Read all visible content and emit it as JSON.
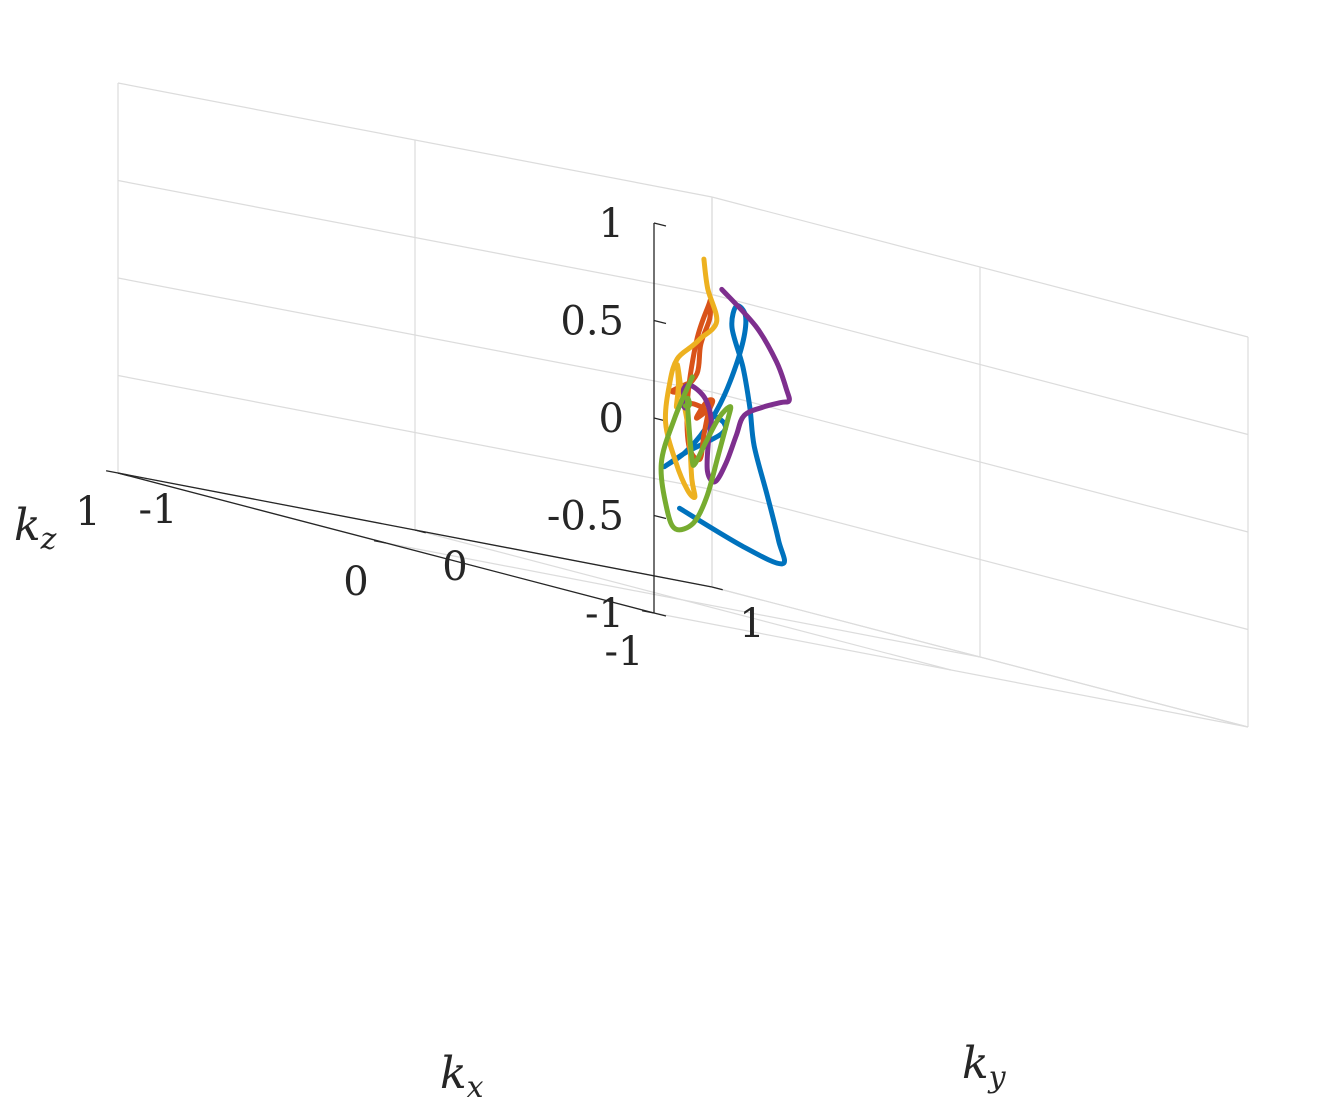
{
  "chart_data": {
    "type": "line3d",
    "title": "",
    "xlabel": "k",
    "xlabel_sub": "x",
    "ylabel": "k",
    "ylabel_sub": "y",
    "zlabel": "k",
    "zlabel_sub": "z",
    "xlim": [
      -1,
      1
    ],
    "ylim": [
      -1,
      1
    ],
    "zlim": [
      -1,
      1
    ],
    "x_ticks": [
      "-1",
      "0",
      "1"
    ],
    "y_ticks": [
      "-1",
      "0",
      "1"
    ],
    "z_ticks": [
      "-1",
      "-0.5",
      "0",
      "0.5",
      "1"
    ],
    "grid": true,
    "legend": "none",
    "series": [
      {
        "color": "#0072BD",
        "points": [
          [
            0.7,
            0.62,
            -0.6
          ],
          [
            0.55,
            0.7,
            -0.72
          ],
          [
            0.35,
            0.65,
            -0.75
          ],
          [
            0.22,
            0.52,
            -0.62
          ],
          [
            0.15,
            0.42,
            -0.4
          ],
          [
            0.1,
            0.33,
            -0.15
          ],
          [
            0.05,
            0.27,
            0.05
          ],
          [
            0.02,
            0.22,
            0.25
          ],
          [
            -0.05,
            0.12,
            0.45
          ],
          [
            -0.2,
            0.0,
            0.58
          ],
          [
            -0.4,
            -0.15,
            0.55
          ],
          [
            -0.55,
            -0.3,
            0.4
          ],
          [
            -0.62,
            -0.42,
            0.15
          ],
          [
            -0.58,
            -0.45,
            -0.05
          ],
          [
            -0.45,
            -0.4,
            -0.2
          ],
          [
            -0.25,
            -0.28,
            -0.3
          ],
          [
            -0.05,
            -0.1,
            -0.32
          ],
          [
            0.1,
            0.1,
            -0.25
          ],
          [
            0.08,
            0.2,
            -0.12
          ],
          [
            -0.02,
            0.12,
            -0.05
          ],
          [
            -0.08,
            0.02,
            -0.01
          ]
        ]
      },
      {
        "color": "#D95319",
        "points": [
          [
            0.75,
            0.7,
            0.05
          ],
          [
            0.65,
            0.55,
            0.0
          ],
          [
            0.45,
            0.4,
            0.03
          ],
          [
            0.28,
            0.3,
            0.15
          ],
          [
            0.1,
            0.15,
            0.32
          ],
          [
            -0.1,
            0.0,
            0.48
          ],
          [
            -0.3,
            -0.18,
            0.58
          ],
          [
            -0.45,
            -0.32,
            0.58
          ],
          [
            -0.55,
            -0.45,
            0.4
          ],
          [
            -0.55,
            -0.48,
            0.1
          ],
          [
            -0.52,
            -0.45,
            -0.15
          ],
          [
            -0.45,
            -0.35,
            -0.22
          ],
          [
            -0.3,
            -0.2,
            -0.1
          ],
          [
            -0.15,
            -0.05,
            0.0
          ],
          [
            0.0,
            0.1,
            0.05
          ],
          [
            0.1,
            0.17,
            0.03
          ],
          [
            0.08,
            0.12,
            -0.05
          ],
          [
            0.0,
            0.05,
            -0.05
          ],
          [
            -0.05,
            0.03,
            0.0
          ],
          [
            -0.04,
            0.0,
            0.02
          ],
          [
            -0.02,
            -0.01,
            0.01
          ]
        ]
      },
      {
        "color": "#EDB120",
        "points": [
          [
            0.72,
            0.72,
            0.7
          ],
          [
            0.75,
            0.76,
            0.55
          ],
          [
            0.65,
            0.7,
            0.4
          ],
          [
            0.4,
            0.42,
            0.32
          ],
          [
            0.1,
            0.12,
            0.3
          ],
          [
            -0.2,
            -0.2,
            0.25
          ],
          [
            -0.45,
            -0.45,
            0.15
          ],
          [
            -0.6,
            -0.6,
            -0.05
          ],
          [
            -0.55,
            -0.52,
            -0.25
          ],
          [
            -0.35,
            -0.3,
            -0.4
          ],
          [
            -0.1,
            -0.05,
            -0.45
          ],
          [
            0.1,
            0.12,
            -0.38
          ],
          [
            0.2,
            0.2,
            -0.15
          ],
          [
            0.25,
            0.22,
            0.05
          ],
          [
            0.22,
            0.18,
            0.18
          ],
          [
            0.15,
            0.12,
            0.08
          ],
          [
            0.08,
            0.05,
            -0.02
          ],
          [
            0.02,
            0.0,
            0.0
          ],
          [
            -0.01,
            -0.01,
            0.01
          ],
          [
            -0.02,
            -0.01,
            0.0
          ]
        ]
      },
      {
        "color": "#7E2F8E",
        "points": [
          [
            -0.2,
            -0.05,
            0.65
          ],
          [
            -0.05,
            0.2,
            0.48
          ],
          [
            0.15,
            0.45,
            0.3
          ],
          [
            0.3,
            0.62,
            0.15
          ],
          [
            0.38,
            0.7,
            0.09
          ],
          [
            0.3,
            0.6,
            0.08
          ],
          [
            0.15,
            0.4,
            0.05
          ],
          [
            0.05,
            0.25,
            0.0
          ],
          [
            0.0,
            0.18,
            -0.1
          ],
          [
            -0.05,
            0.1,
            -0.25
          ],
          [
            -0.12,
            0.0,
            -0.35
          ],
          [
            -0.18,
            -0.08,
            -0.3
          ],
          [
            -0.15,
            -0.05,
            -0.15
          ],
          [
            -0.05,
            0.05,
            -0.05
          ],
          [
            0.05,
            0.12,
            0.05
          ],
          [
            0.08,
            0.1,
            0.1
          ],
          [
            0.02,
            0.02,
            0.08
          ],
          [
            -0.04,
            -0.03,
            0.02
          ],
          [
            -0.03,
            -0.02,
            -0.01
          ],
          [
            0.0,
            0.0,
            0.0
          ]
        ]
      },
      {
        "color": "#77AC30",
        "points": [
          [
            -0.7,
            -0.6,
            0.22
          ],
          [
            -0.8,
            -0.75,
            0.0
          ],
          [
            -0.75,
            -0.75,
            -0.25
          ],
          [
            -0.55,
            -0.55,
            -0.5
          ],
          [
            -0.25,
            -0.25,
            -0.62
          ],
          [
            0.05,
            0.08,
            -0.6
          ],
          [
            0.3,
            0.35,
            -0.48
          ],
          [
            0.48,
            0.55,
            -0.28
          ],
          [
            0.52,
            0.62,
            -0.08
          ],
          [
            0.4,
            0.52,
            0.0
          ],
          [
            0.22,
            0.32,
            -0.05
          ],
          [
            0.05,
            0.12,
            -0.18
          ],
          [
            -0.1,
            -0.05,
            -0.28
          ],
          [
            -0.2,
            -0.15,
            -0.25
          ],
          [
            -0.22,
            -0.18,
            -0.05
          ],
          [
            -0.15,
            -0.12,
            0.05
          ],
          [
            -0.08,
            -0.05,
            0.02
          ],
          [
            -0.04,
            -0.02,
            0.0
          ],
          [
            -0.02,
            -0.01,
            0.0
          ]
        ]
      }
    ]
  }
}
